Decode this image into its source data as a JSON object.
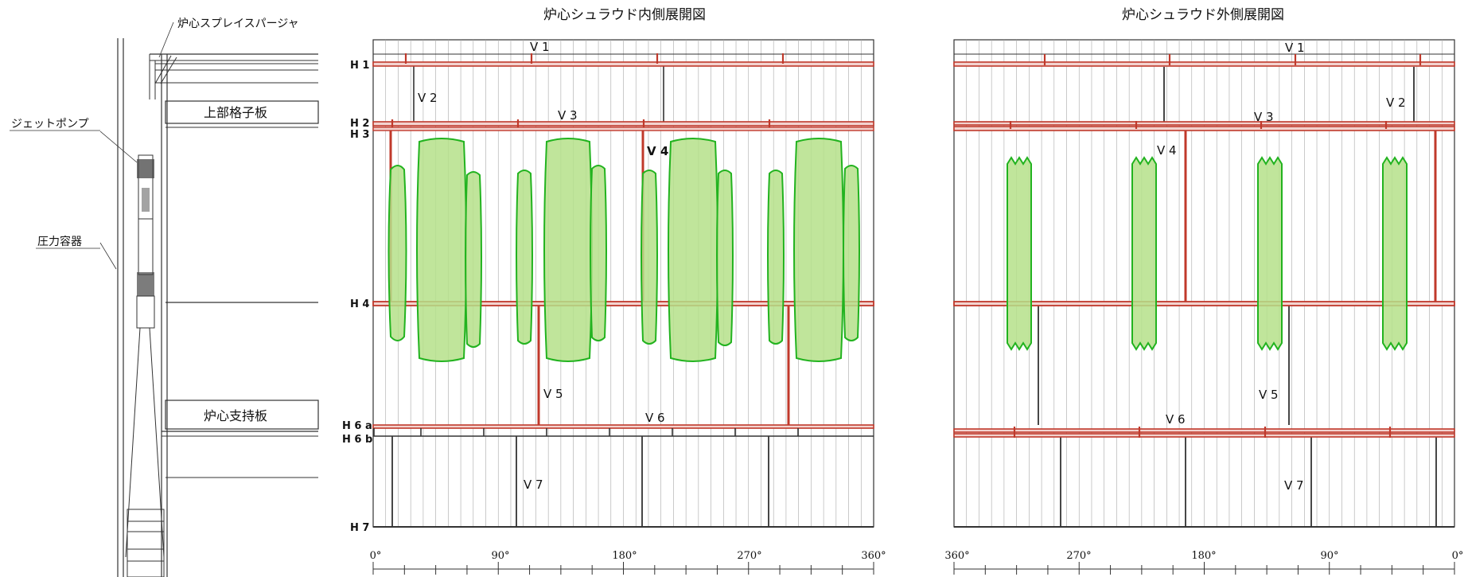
{
  "inner": {
    "title": "炉心シュラウド内側展開図",
    "horizontal_labels": [
      "H 1",
      "H 2",
      "H 3",
      "H 4",
      "H 6 a",
      "H 6 b",
      "H 7"
    ],
    "vertical_labels": [
      "V 1",
      "V 2",
      "V 3",
      "V 4",
      "V 5",
      "V 6",
      "V 7"
    ],
    "angle_labels": [
      "0°",
      "90°",
      "180°",
      "270°",
      "360°"
    ]
  },
  "outer": {
    "title": "炉心シュラウド外側展開図",
    "vertical_labels": [
      "V 1",
      "V 2",
      "V 3",
      "V 4",
      "V 5",
      "V 6",
      "V 7"
    ],
    "angle_labels": [
      "360°",
      "270°",
      "180°",
      "90°",
      "0°"
    ]
  },
  "section": {
    "labels": [
      "炉心スプレイスパージャ",
      "ジェットポンプ",
      "圧力容器",
      "上部格子板",
      "炉心支持板"
    ]
  },
  "colors": {
    "weld_line": "#c0392b",
    "inspection_area_fill": "#b5e08a",
    "inspection_area_stroke": "#22b31f",
    "drawing_line": "#333333",
    "grid_line": "#9a9a9a"
  }
}
